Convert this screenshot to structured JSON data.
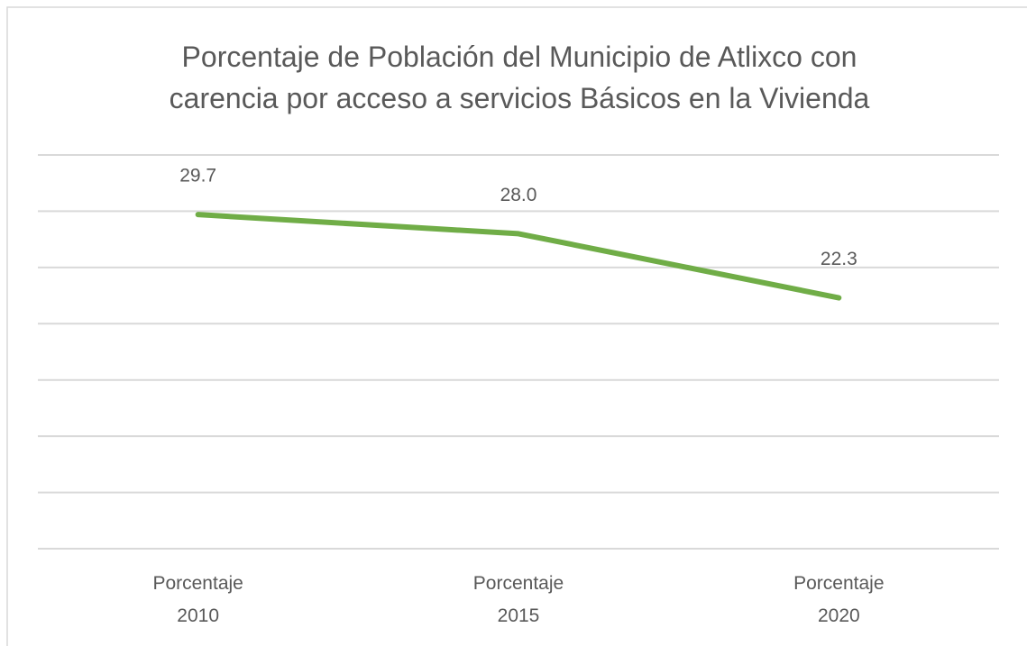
{
  "chart_data": {
    "type": "line",
    "title": "Porcentaje de Población del Municipio de Atlixco con carencia por acceso a servicios Básicos en la Vivienda",
    "categories": [
      "Porcentaje 2010",
      "Porcentaje 2015",
      "Porcentaje 2020"
    ],
    "series": [
      {
        "color": "#70ad47",
        "values": [
          29.7,
          28.0,
          22.3
        ],
        "value_labels": [
          "29.7",
          "28.0",
          "22.3"
        ]
      }
    ],
    "ylim": [
      0,
      35
    ],
    "yticks": [
      0,
      5,
      10,
      15,
      20,
      25,
      30,
      35
    ],
    "grid": true,
    "y_tick_labels": false
  }
}
